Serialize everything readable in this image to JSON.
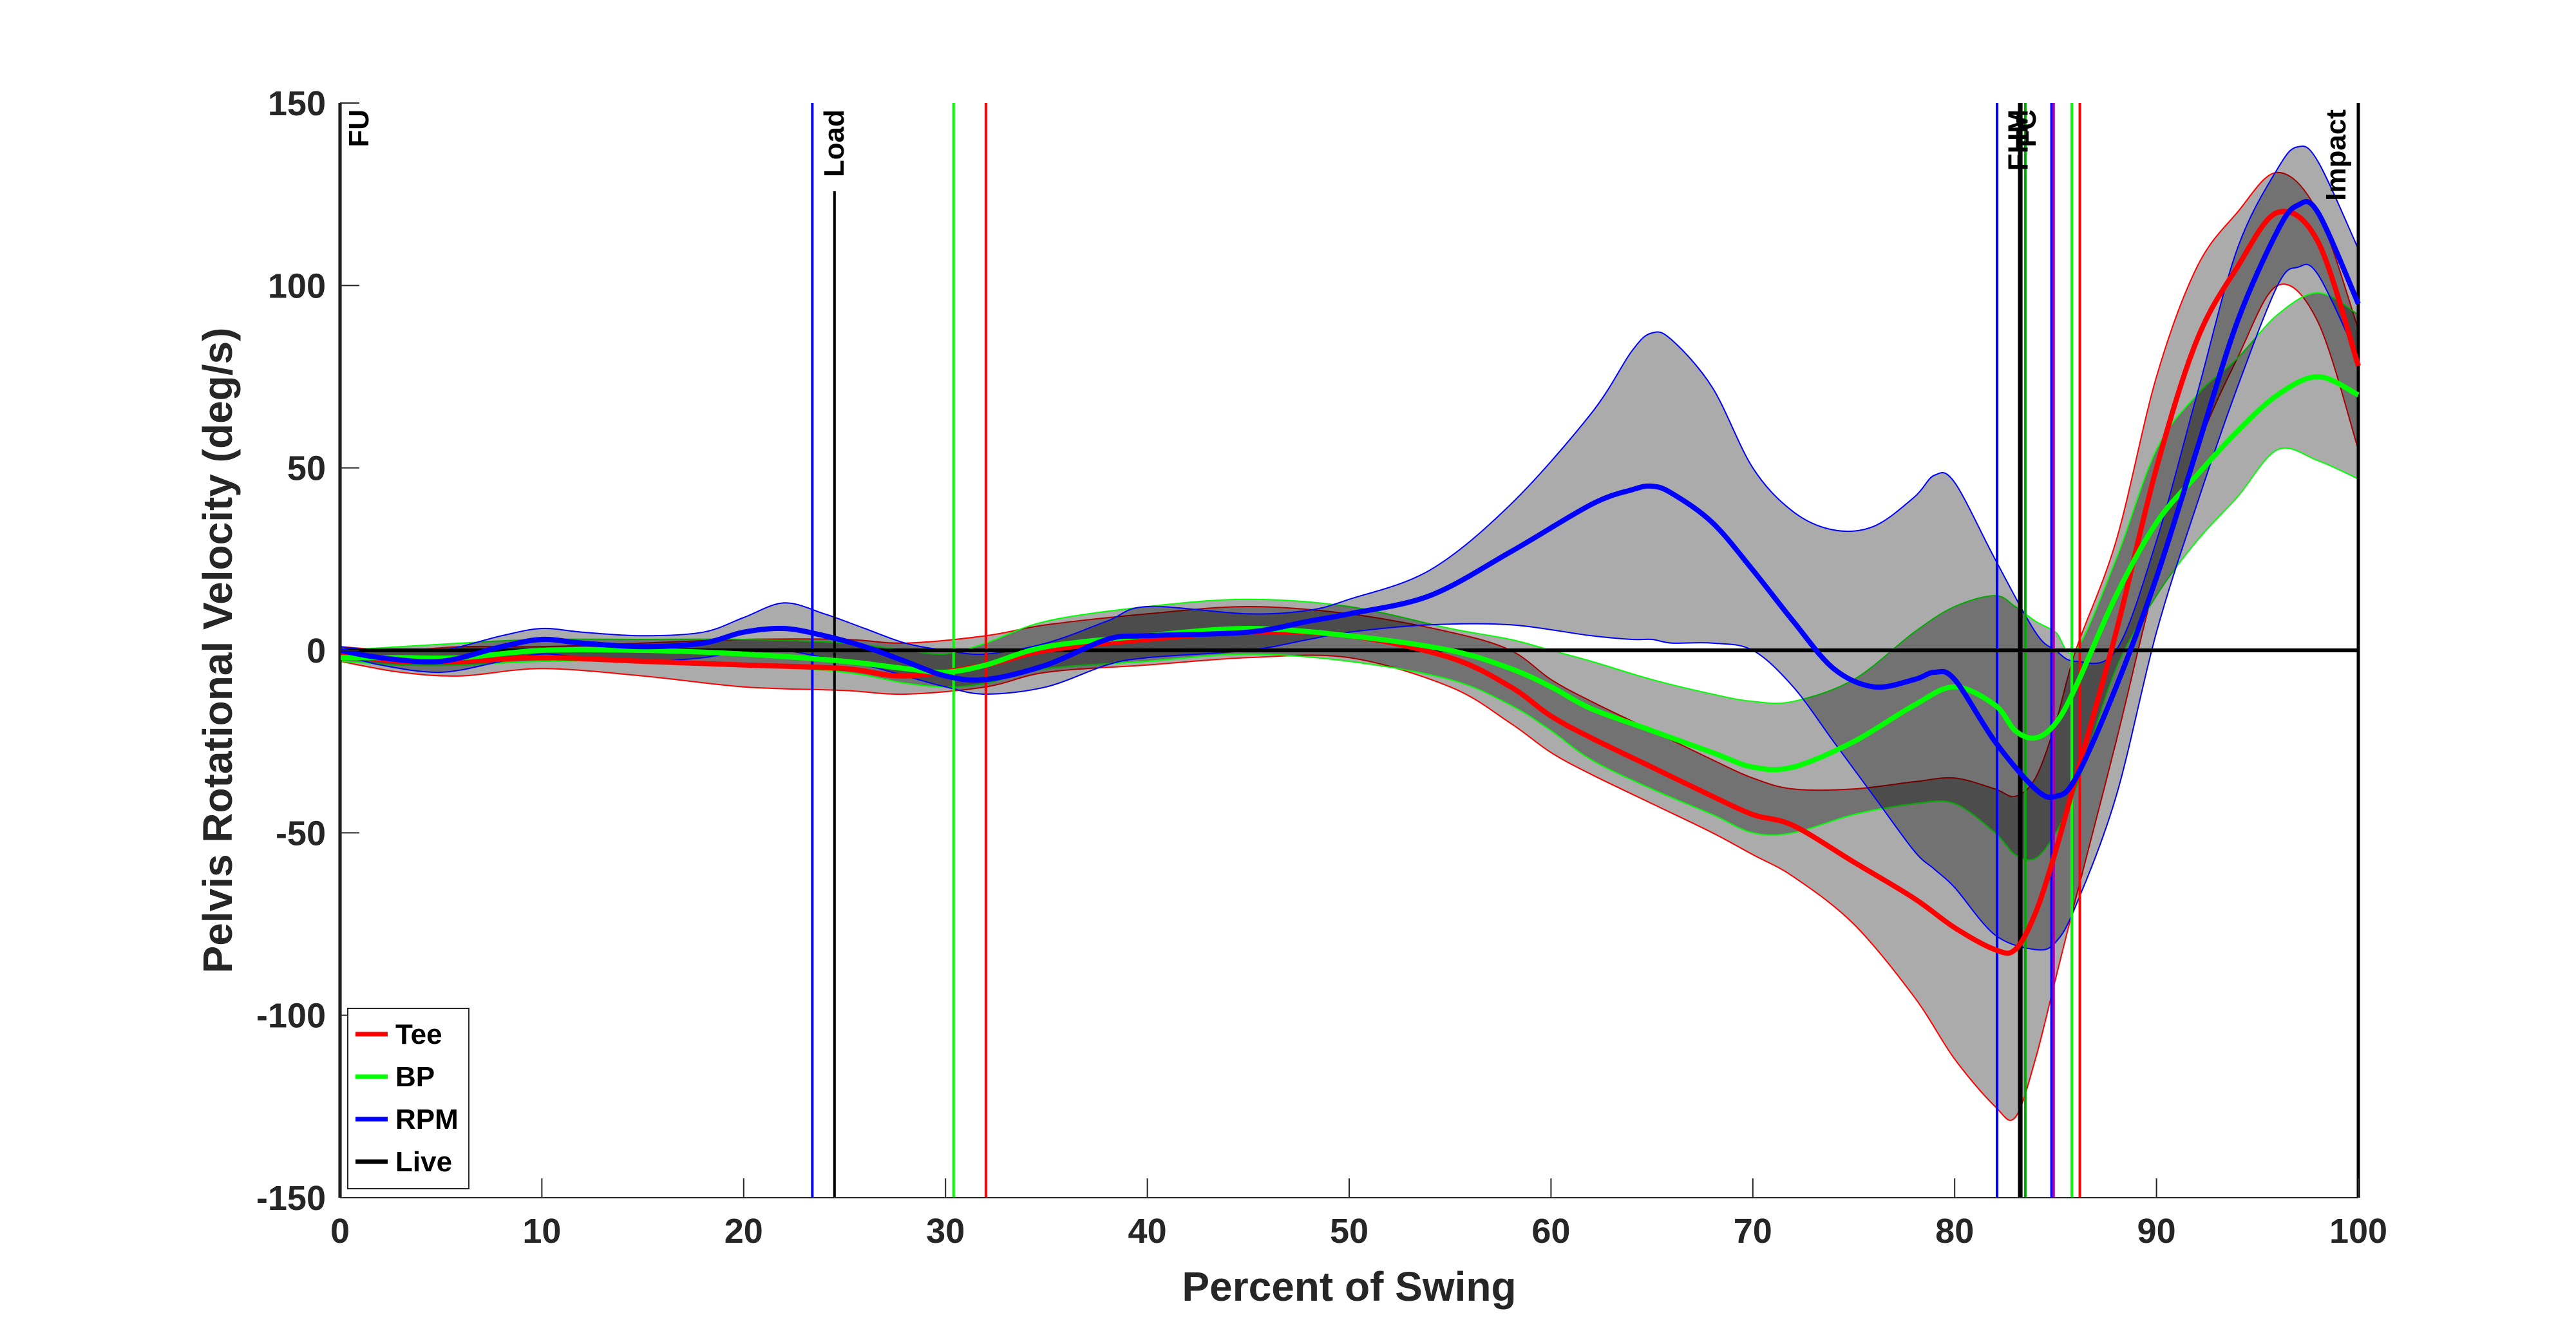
{
  "chart_data": {
    "type": "line",
    "xlabel": "Percent of Swing",
    "ylabel": "Pelvis Rotational Velocity (deg/s)",
    "xlim": [
      0,
      100
    ],
    "ylim": [
      -150,
      150
    ],
    "xticks": [
      0,
      10,
      20,
      30,
      40,
      50,
      60,
      70,
      80,
      90,
      100
    ],
    "yticks": [
      -150,
      -100,
      -50,
      0,
      50,
      100,
      150
    ],
    "grid": false,
    "legend_position": "bottom-left",
    "shading": "mean ± SD bands (gray)",
    "legend": [
      {
        "name": "Tee",
        "color": "#ff0000"
      },
      {
        "name": "BP",
        "color": "#00ff00"
      },
      {
        "name": "RPM",
        "color": "#0000ff"
      },
      {
        "name": "Live",
        "color": "#000000"
      }
    ],
    "series": [
      {
        "name": "Tee",
        "color": "#ff0000",
        "x": [
          0,
          3,
          6,
          10,
          15,
          20,
          25,
          28,
          32,
          35,
          40,
          45,
          50,
          55,
          58,
          60,
          62,
          65,
          68,
          70,
          72,
          75,
          78,
          80,
          82,
          83,
          84,
          85,
          86,
          88,
          90,
          92,
          94,
          96,
          98,
          100
        ],
        "y": [
          -1,
          -3,
          -3,
          -2,
          -3,
          -4,
          -5,
          -7,
          -4,
          0,
          3,
          5,
          4,
          -2,
          -10,
          -18,
          -24,
          -32,
          -40,
          -45,
          -48,
          -58,
          -68,
          -76,
          -82,
          -82,
          -72,
          -55,
          -35,
          5,
          50,
          85,
          105,
          120,
          112,
          78
        ],
        "upper": [
          1,
          0,
          1,
          1,
          2,
          3,
          3,
          2,
          4,
          7,
          10,
          12,
          10,
          5,
          0,
          -8,
          -14,
          -22,
          -30,
          -35,
          -38,
          -38,
          -36,
          -35,
          -38,
          -40,
          -35,
          -20,
          0,
          30,
          75,
          105,
          120,
          131,
          120,
          88
        ],
        "lower": [
          -3,
          -6,
          -7,
          -5,
          -7,
          -10,
          -11,
          -12,
          -10,
          -6,
          -4,
          -2,
          -2,
          -10,
          -20,
          -28,
          -34,
          -42,
          -50,
          -56,
          -62,
          -75,
          -95,
          -112,
          -125,
          -128,
          -112,
          -90,
          -68,
          -25,
          20,
          55,
          80,
          100,
          90,
          55
        ]
      },
      {
        "name": "BP",
        "color": "#00ff00",
        "x": [
          0,
          3,
          6,
          10,
          15,
          20,
          25,
          28,
          30,
          32,
          35,
          40,
          45,
          50,
          55,
          58,
          60,
          62,
          65,
          68,
          70,
          72,
          75,
          78,
          80,
          82,
          83,
          84,
          85,
          86,
          88,
          90,
          92,
          94,
          96,
          98,
          100
        ],
        "y": [
          -2,
          -2,
          -2,
          0,
          0,
          -1,
          -3,
          -5,
          -6,
          -4,
          1,
          4,
          6,
          4,
          0,
          -5,
          -10,
          -16,
          -22,
          -28,
          -32,
          -32,
          -25,
          -15,
          -10,
          -15,
          -22,
          -24,
          -20,
          -10,
          15,
          35,
          48,
          60,
          70,
          75,
          70
        ],
        "upper": [
          0,
          1,
          2,
          3,
          3,
          3,
          2,
          0,
          -1,
          2,
          8,
          12,
          14,
          12,
          6,
          3,
          0,
          -3,
          -8,
          -12,
          -14,
          -14,
          -8,
          5,
          12,
          15,
          12,
          8,
          5,
          0,
          25,
          55,
          70,
          80,
          92,
          98,
          92
        ],
        "lower": [
          -3,
          -4,
          -4,
          -3,
          -3,
          -4,
          -6,
          -9,
          -10,
          -9,
          -5,
          -3,
          -1,
          -3,
          -8,
          -15,
          -22,
          -30,
          -38,
          -45,
          -50,
          -50,
          -45,
          -42,
          -42,
          -50,
          -56,
          -57,
          -50,
          -38,
          -5,
          15,
          30,
          42,
          55,
          52,
          47
        ]
      },
      {
        "name": "RPM",
        "color": "#0000ff",
        "x": [
          0,
          2,
          5,
          8,
          10,
          12,
          15,
          18,
          20,
          22,
          24,
          26,
          28,
          30,
          32,
          35,
          38,
          40,
          45,
          48,
          50,
          54,
          58,
          62,
          64,
          65,
          66,
          68,
          70,
          72,
          74,
          76,
          78,
          79,
          80,
          82,
          84,
          85,
          86,
          88,
          90,
          92,
          94,
          96,
          97,
          98,
          100
        ],
        "y": [
          0,
          -2,
          -3,
          1,
          3,
          2,
          1,
          2,
          5,
          6,
          4,
          1,
          -3,
          -7,
          -8,
          -4,
          3,
          4,
          5,
          8,
          10,
          15,
          27,
          40,
          44,
          45,
          43,
          35,
          22,
          8,
          -5,
          -10,
          -8,
          -6,
          -8,
          -25,
          -38,
          -40,
          -35,
          -10,
          20,
          55,
          90,
          115,
          122,
          120,
          95
        ],
        "upper": [
          1,
          0,
          0,
          4,
          6,
          5,
          4,
          5,
          9,
          13,
          10,
          6,
          2,
          0,
          -1,
          2,
          8,
          12,
          10,
          11,
          14,
          22,
          40,
          65,
          82,
          87,
          85,
          72,
          50,
          38,
          33,
          34,
          42,
          48,
          46,
          25,
          5,
          0,
          -3,
          0,
          30,
          70,
          110,
          132,
          138,
          134,
          110
        ],
        "lower": [
          -1,
          -4,
          -6,
          -3,
          -1,
          -2,
          -3,
          -2,
          0,
          0,
          -2,
          -4,
          -7,
          -10,
          -12,
          -10,
          -4,
          -2,
          0,
          3,
          5,
          7,
          7,
          4,
          3,
          3,
          2,
          2,
          0,
          -10,
          -25,
          -40,
          -55,
          -60,
          -65,
          -78,
          -82,
          -80,
          -70,
          -40,
          5,
          40,
          72,
          100,
          105,
          103,
          80
        ]
      }
    ],
    "zero_line": 0,
    "events": [
      {
        "label": "FU",
        "x": 0,
        "color": "#000000",
        "series": "Live"
      },
      {
        "label": "",
        "x": 23.4,
        "color": "#0000ff",
        "series": "RPM"
      },
      {
        "label": "Load",
        "x": 24.5,
        "color": "#000000",
        "series": "Live"
      },
      {
        "label": "",
        "x": 30.4,
        "color": "#00ff00",
        "series": "BP"
      },
      {
        "label": "",
        "x": 32.0,
        "color": "#ff0000",
        "series": "Tee"
      },
      {
        "label": "",
        "x": 82.1,
        "color": "#0000ff",
        "series": "RPM"
      },
      {
        "label": "",
        "x": 83.2,
        "color": "#000000",
        "series": "Live"
      },
      {
        "label": "FHM",
        "x": 83.3,
        "color": "#000000",
        "series": "Live"
      },
      {
        "label": "FC",
        "x": 83.5,
        "color": "#00aa00",
        "series": "BP"
      },
      {
        "label": "",
        "x": 84.8,
        "color": "#0000ff",
        "series": "RPM"
      },
      {
        "label": "",
        "x": 84.9,
        "color": "#aa00aa",
        "series": "Live"
      },
      {
        "label": "",
        "x": 85.8,
        "color": "#00ff00",
        "series": "BP"
      },
      {
        "label": "",
        "x": 86.2,
        "color": "#ff0000",
        "series": "Tee"
      },
      {
        "label": "Impact",
        "x": 100,
        "color": "#000000",
        "series": "Live"
      }
    ]
  }
}
